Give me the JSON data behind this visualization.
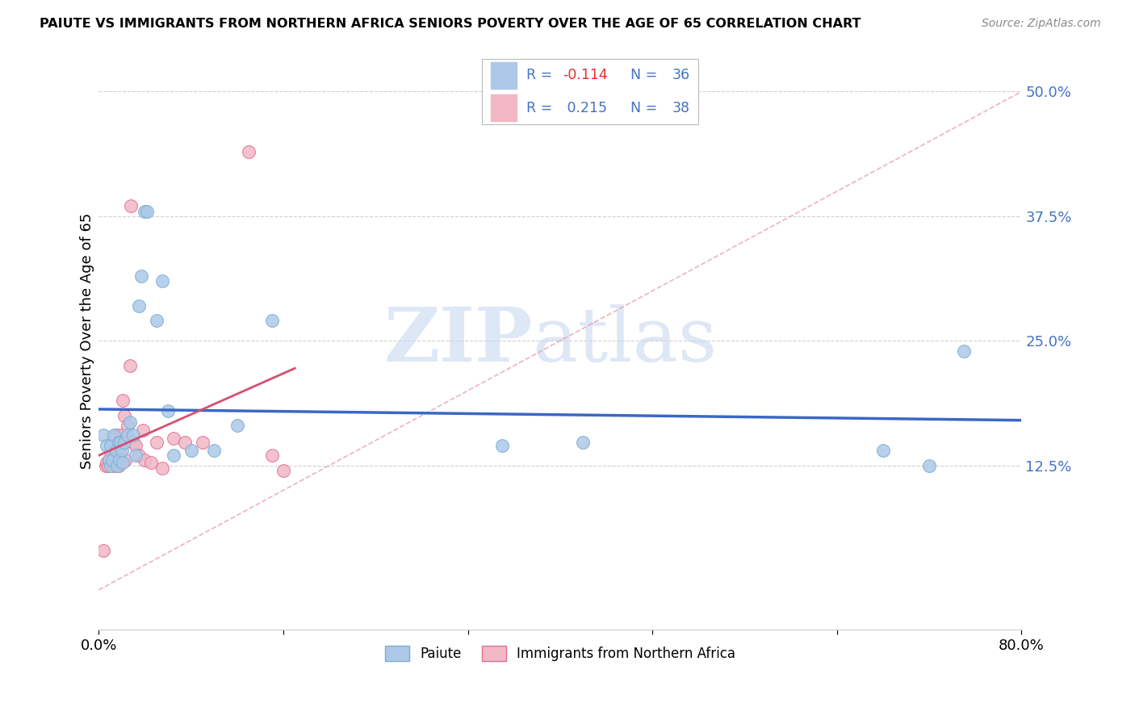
{
  "title": "PAIUTE VS IMMIGRANTS FROM NORTHERN AFRICA SENIORS POVERTY OVER THE AGE OF 65 CORRELATION CHART",
  "source": "Source: ZipAtlas.com",
  "ylabel": "Seniors Poverty Over the Age of 65",
  "xmin": 0.0,
  "xmax": 0.8,
  "ymin": -0.04,
  "ymax": 0.54,
  "paiute_color": "#adc8e8",
  "paiute_edge": "#7aafd4",
  "immigrants_color": "#f2b8c6",
  "immigrants_edge": "#e07090",
  "trend_blue_color": "#3a68c4",
  "trend_pink_solid_color": "#d45070",
  "trend_pink_dashed_color": "#e8a0b0",
  "watermark_zip_color": "#c8d8ef",
  "watermark_atlas_color": "#c8d8ef",
  "background_color": "#ffffff",
  "grid_color": "#d0d0d0",
  "ytick_color": "#4472c4",
  "legend_text_color": "#4472c4",
  "legend_r1_color": "#e03030",
  "legend_r2_color": "#4472c4",
  "paiute_x": [
    0.004,
    0.007,
    0.009,
    0.01,
    0.01,
    0.012,
    0.013,
    0.015,
    0.016,
    0.017,
    0.018,
    0.019,
    0.02,
    0.021,
    0.022,
    0.025,
    0.027,
    0.03,
    0.032,
    0.035,
    0.037,
    0.04,
    0.042,
    0.05,
    0.055,
    0.06,
    0.065,
    0.08,
    0.1,
    0.12,
    0.15,
    0.35,
    0.42,
    0.68,
    0.72,
    0.75
  ],
  "paiute_y": [
    0.155,
    0.145,
    0.13,
    0.125,
    0.145,
    0.13,
    0.155,
    0.14,
    0.125,
    0.148,
    0.13,
    0.148,
    0.14,
    0.128,
    0.148,
    0.155,
    0.168,
    0.155,
    0.135,
    0.285,
    0.315,
    0.38,
    0.38,
    0.27,
    0.31,
    0.18,
    0.135,
    0.14,
    0.14,
    0.165,
    0.27,
    0.145,
    0.148,
    0.14,
    0.125,
    0.24
  ],
  "immigrants_x": [
    0.004,
    0.006,
    0.007,
    0.008,
    0.009,
    0.01,
    0.011,
    0.012,
    0.013,
    0.014,
    0.015,
    0.015,
    0.016,
    0.017,
    0.018,
    0.018,
    0.019,
    0.02,
    0.021,
    0.022,
    0.023,
    0.025,
    0.027,
    0.028,
    0.03,
    0.032,
    0.035,
    0.038,
    0.04,
    0.045,
    0.05,
    0.055,
    0.065,
    0.075,
    0.09,
    0.13,
    0.15,
    0.16
  ],
  "immigrants_y": [
    0.04,
    0.125,
    0.128,
    0.125,
    0.13,
    0.138,
    0.128,
    0.13,
    0.125,
    0.13,
    0.128,
    0.155,
    0.13,
    0.125,
    0.138,
    0.128,
    0.155,
    0.148,
    0.19,
    0.175,
    0.13,
    0.165,
    0.225,
    0.385,
    0.148,
    0.145,
    0.135,
    0.16,
    0.13,
    0.128,
    0.148,
    0.122,
    0.152,
    0.148,
    0.148,
    0.44,
    0.135,
    0.12
  ]
}
